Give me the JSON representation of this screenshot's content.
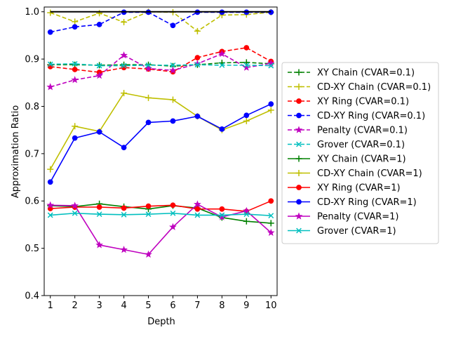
{
  "chart_data": {
    "type": "line",
    "xlabel": "Depth",
    "ylabel": "Approximation Ratio",
    "x": [
      1,
      2,
      3,
      4,
      5,
      6,
      7,
      8,
      9,
      10
    ],
    "xticks": [
      "1",
      "2",
      "3",
      "4",
      "5",
      "6",
      "7",
      "8",
      "9",
      "10"
    ],
    "yticks": [
      "0.4",
      "0.5",
      "0.6",
      "0.7",
      "0.8",
      "0.9",
      "1.0"
    ],
    "xlim": [
      0.75,
      10.25
    ],
    "ylim": [
      0.4,
      1.01
    ],
    "grid": false,
    "legend_position": "right",
    "reference_line": {
      "y": 1.0,
      "color": "#000000"
    },
    "series": [
      {
        "name": "XY Chain (CVAR=0.1)",
        "color": "#008000",
        "dashed": true,
        "marker": "plus",
        "values": [
          0.888,
          0.888,
          0.887,
          0.888,
          0.888,
          0.885,
          0.888,
          0.892,
          0.893,
          0.89
        ]
      },
      {
        "name": "CD-XY Chain (CVAR=0.1)",
        "color": "#bfbf00",
        "dashed": true,
        "marker": "plus",
        "values": [
          0.998,
          0.979,
          0.997,
          0.978,
          1.0,
          0.999,
          0.959,
          0.993,
          0.994,
          0.999
        ]
      },
      {
        "name": "XY Ring (CVAR=0.1)",
        "color": "#ff0000",
        "dashed": true,
        "marker": "circle",
        "values": [
          0.884,
          0.878,
          0.872,
          0.882,
          0.879,
          0.873,
          0.903,
          0.916,
          0.924,
          0.895
        ]
      },
      {
        "name": "CD-XY Ring (CVAR=0.1)",
        "color": "#0000ff",
        "dashed": true,
        "marker": "circle",
        "values": [
          0.957,
          0.968,
          0.973,
          0.999,
          0.999,
          0.971,
          0.999,
          0.999,
          0.999,
          0.999
        ]
      },
      {
        "name": "Penalty (CVAR=0.1)",
        "color": "#bf00bf",
        "dashed": true,
        "marker": "star",
        "values": [
          0.841,
          0.856,
          0.865,
          0.908,
          0.88,
          0.876,
          0.89,
          0.911,
          0.882,
          0.891
        ]
      },
      {
        "name": "Grover (CVAR=0.1)",
        "color": "#00bfbf",
        "dashed": true,
        "marker": "x",
        "values": [
          0.889,
          0.89,
          0.886,
          0.886,
          0.887,
          0.887,
          0.888,
          0.887,
          0.887,
          0.886
        ]
      },
      {
        "name": "XY Chain (CVAR=1)",
        "color": "#008000",
        "dashed": false,
        "marker": "plus",
        "values": [
          0.59,
          0.588,
          0.594,
          0.588,
          0.583,
          0.59,
          0.585,
          0.565,
          0.557,
          0.553
        ]
      },
      {
        "name": "CD-XY Chain (CVAR=1)",
        "color": "#bfbf00",
        "dashed": false,
        "marker": "plus",
        "values": [
          0.667,
          0.758,
          0.747,
          0.828,
          0.818,
          0.814,
          0.779,
          0.75,
          0.769,
          0.792
        ]
      },
      {
        "name": "XY Ring (CVAR=1)",
        "color": "#ff0000",
        "dashed": false,
        "marker": "circle",
        "values": [
          0.584,
          0.587,
          0.587,
          0.585,
          0.589,
          0.591,
          0.583,
          0.583,
          0.578,
          0.6
        ]
      },
      {
        "name": "CD-XY Ring (CVAR=1)",
        "color": "#0000ff",
        "dashed": false,
        "marker": "circle",
        "values": [
          0.64,
          0.733,
          0.746,
          0.713,
          0.766,
          0.769,
          0.779,
          0.752,
          0.781,
          0.805
        ]
      },
      {
        "name": "Penalty (CVAR=1)",
        "color": "#bf00bf",
        "dashed": false,
        "marker": "star",
        "values": [
          0.591,
          0.59,
          0.507,
          0.497,
          0.487,
          0.545,
          0.593,
          0.566,
          0.579,
          0.533
        ]
      },
      {
        "name": "Grover (CVAR=1)",
        "color": "#00bfbf",
        "dashed": false,
        "marker": "x",
        "values": [
          0.57,
          0.574,
          0.572,
          0.571,
          0.572,
          0.574,
          0.57,
          0.57,
          0.572,
          0.569
        ]
      }
    ]
  }
}
